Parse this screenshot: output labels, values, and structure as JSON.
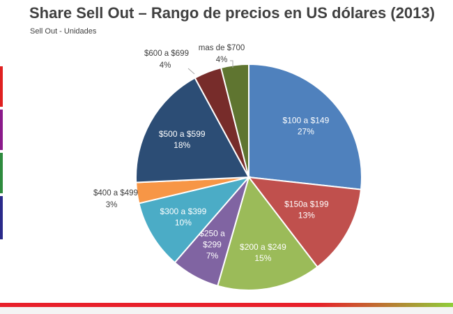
{
  "header": {
    "title": "Share Sell Out – Rango de precios en US dólares (2013)",
    "subtitle": "Sell Out - Unidades"
  },
  "decor": {
    "side_tab_colors": [
      "#e02020",
      "#8b1a8b",
      "#2e8b3e",
      "#2a2a8a"
    ],
    "band_colors": [
      "#e8202a",
      "#8fce3a"
    ]
  },
  "chart_data": {
    "type": "pie",
    "start_angle_deg": 0,
    "direction": "clockwise",
    "slices": [
      {
        "label": "$100 a $149",
        "value": 27,
        "display": "27%",
        "color": "#4f81bd",
        "label_inside": true
      },
      {
        "label": "$150a $199",
        "value": 13,
        "display": "13%",
        "color": "#c0504d",
        "label_inside": true
      },
      {
        "label": "$200 a $249",
        "value": 15,
        "display": "15%",
        "color": "#9bbb59",
        "label_inside": true
      },
      {
        "label": "$250 a $299",
        "value": 7,
        "display": "7%",
        "color": "#8064a2",
        "label_inside": true
      },
      {
        "label": "$300 a $399",
        "value": 10,
        "display": "10%",
        "color": "#4bacc6",
        "label_inside": true
      },
      {
        "label": "$400 a $499",
        "value": 3,
        "display": "3%",
        "color": "#f79646",
        "label_inside": false
      },
      {
        "label": "$500 a $599",
        "value": 18,
        "display": "18%",
        "color": "#2c4d75",
        "label_inside": true
      },
      {
        "label": "$600 a $699",
        "value": 4,
        "display": "4%",
        "color": "#772c2a",
        "label_inside": false
      },
      {
        "label": "mas de $700",
        "value": 4,
        "display": "4%",
        "color": "#5f7530",
        "label_inside": false
      }
    ]
  }
}
